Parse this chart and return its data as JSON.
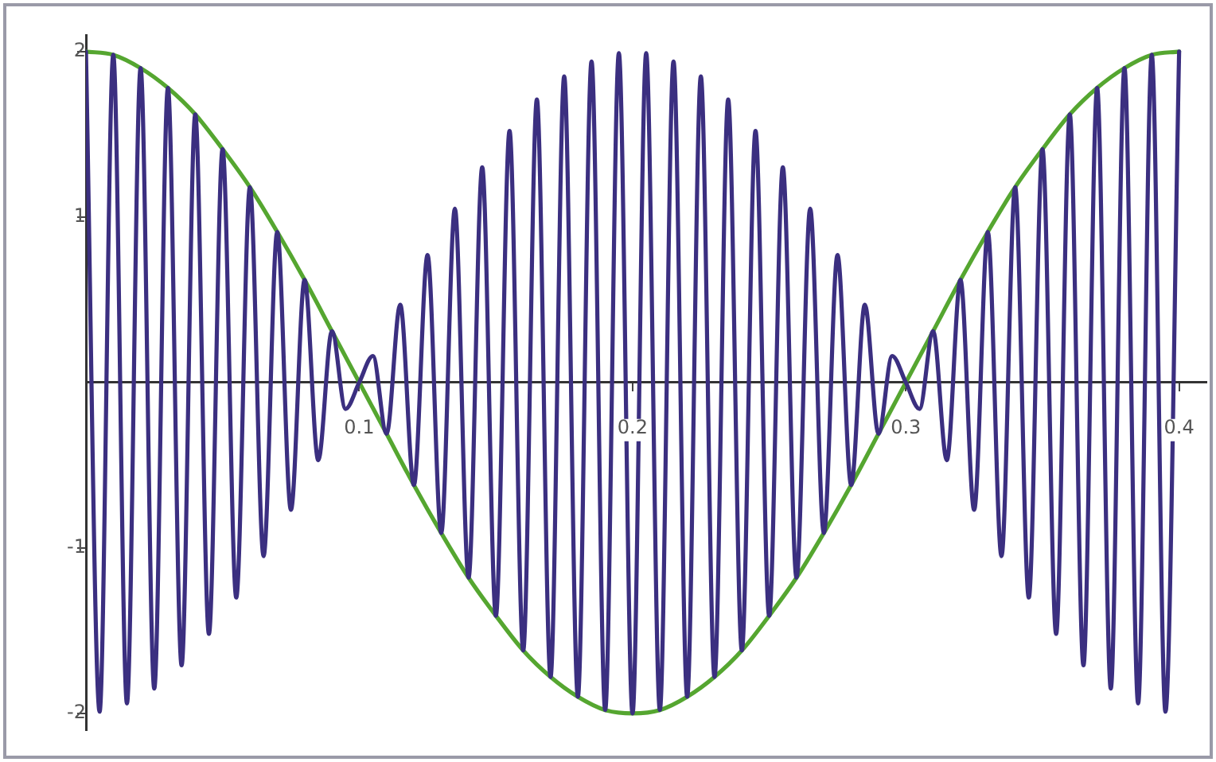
{
  "chart_data": {
    "type": "line",
    "xlim": [
      0,
      0.41
    ],
    "ylim": [
      -2.1,
      2.1
    ],
    "xticks": [
      0.1,
      0.2,
      0.3,
      0.4
    ],
    "yticks": [
      -2,
      -1,
      1,
      2
    ],
    "grid": false,
    "legend": false,
    "marker": "none",
    "line_style": "solid",
    "series": [
      {
        "color": "#3b2f80",
        "x": [
          0,
          0.005,
          0.01,
          0.015,
          0.02,
          0.025,
          0.03,
          0.035,
          0.04,
          0.045,
          0.05,
          0.055,
          0.06,
          0.065,
          0.07,
          0.075,
          0.08,
          0.085,
          0.09,
          0.095,
          0.1,
          0.105,
          0.11,
          0.115,
          0.12,
          0.125,
          0.13,
          0.135,
          0.14,
          0.145,
          0.15,
          0.155,
          0.16,
          0.165,
          0.17,
          0.175,
          0.18,
          0.185,
          0.19,
          0.195,
          0.2,
          0.205,
          0.21,
          0.215,
          0.22,
          0.225,
          0.23,
          0.235,
          0.24,
          0.245,
          0.25,
          0.255,
          0.26,
          0.265,
          0.27,
          0.275,
          0.28,
          0.285,
          0.29,
          0.295,
          0.3,
          0.305,
          0.31,
          0.315,
          0.32,
          0.325,
          0.33,
          0.335,
          0.34,
          0.345,
          0.35,
          0.355,
          0.36,
          0.365,
          0.37,
          0.375,
          0.38,
          0.385,
          0.39,
          0.395,
          0.4
        ],
        "values": [
          2,
          -1.99,
          1.98,
          -1.94,
          1.9,
          -1.85,
          1.78,
          -1.71,
          1.62,
          -1.52,
          1.41,
          -1.3,
          1.18,
          -1.05,
          0.91,
          -0.77,
          0.62,
          -0.47,
          0.31,
          -0.16,
          0,
          0.16,
          -0.31,
          0.47,
          -0.62,
          0.77,
          -0.91,
          1.05,
          -1.18,
          1.3,
          -1.41,
          1.52,
          -1.62,
          1.71,
          -1.78,
          1.85,
          -1.9,
          1.94,
          -1.98,
          1.99,
          -2,
          1.99,
          -1.98,
          1.94,
          -1.9,
          1.85,
          -1.78,
          1.71,
          -1.62,
          1.52,
          -1.41,
          1.3,
          -1.18,
          1.05,
          -0.91,
          0.77,
          -0.62,
          0.47,
          -0.31,
          0.16,
          0,
          -0.16,
          0.31,
          -0.47,
          0.62,
          -0.77,
          0.91,
          -1.05,
          1.18,
          -1.3,
          1.41,
          -1.52,
          1.62,
          -1.71,
          1.78,
          -1.85,
          1.9,
          -1.94,
          1.98,
          -1.99,
          2
        ]
      },
      {
        "color": "#55a630",
        "x": [
          0,
          0.01,
          0.02,
          0.03,
          0.04,
          0.05,
          0.06,
          0.07,
          0.08,
          0.09,
          0.1,
          0.11,
          0.12,
          0.13,
          0.14,
          0.15,
          0.16,
          0.17,
          0.18,
          0.19,
          0.2,
          0.21,
          0.22,
          0.23,
          0.24,
          0.25,
          0.26,
          0.27,
          0.28,
          0.29,
          0.3,
          0.31,
          0.32,
          0.33,
          0.34,
          0.35,
          0.36,
          0.37,
          0.38,
          0.39,
          0.4
        ],
        "values": [
          2,
          1.98,
          1.9,
          1.78,
          1.62,
          1.41,
          1.18,
          0.91,
          0.62,
          0.31,
          0,
          -0.31,
          -0.62,
          -0.91,
          -1.18,
          -1.41,
          -1.62,
          -1.78,
          -1.9,
          -1.98,
          -2,
          -1.98,
          -1.9,
          -1.78,
          -1.62,
          -1.41,
          -1.18,
          -0.91,
          -0.62,
          -0.31,
          0,
          0.31,
          0.62,
          0.91,
          1.18,
          1.41,
          1.62,
          1.78,
          1.9,
          1.98,
          2
        ]
      }
    ]
  }
}
